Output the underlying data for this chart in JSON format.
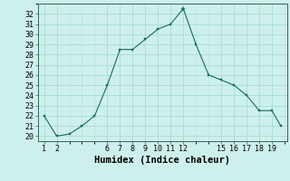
{
  "x": [
    1,
    2,
    3,
    4,
    5,
    6,
    7,
    8,
    9,
    10,
    11,
    12,
    13,
    14,
    15,
    16,
    17,
    18,
    19,
    19.7
  ],
  "y": [
    22.0,
    20.0,
    20.2,
    21.0,
    22.0,
    25.0,
    28.5,
    28.5,
    29.5,
    30.5,
    31.0,
    32.5,
    29.0,
    26.0,
    25.5,
    25.0,
    24.0,
    22.5,
    22.5,
    21.0
  ],
  "line_color": "#1a6b5a",
  "marker_color": "#1a6b5a",
  "bg_color": "#cef0ec",
  "grid_major_color": "#9ed8d3",
  "grid_minor_color": "#b8e5e1",
  "xlabel": "Humidex (Indice chaleur)",
  "xlim": [
    0.5,
    20.2
  ],
  "ylim": [
    19.5,
    33.0
  ],
  "xticks": [
    1,
    2,
    6,
    7,
    8,
    9,
    10,
    11,
    12,
    15,
    16,
    17,
    18,
    19
  ],
  "yticks": [
    20,
    21,
    22,
    23,
    24,
    25,
    26,
    27,
    28,
    29,
    30,
    31,
    32
  ],
  "peak_x": 12,
  "peak_y": 32.5,
  "xlabel_fontsize": 7.5,
  "tick_fontsize": 6
}
